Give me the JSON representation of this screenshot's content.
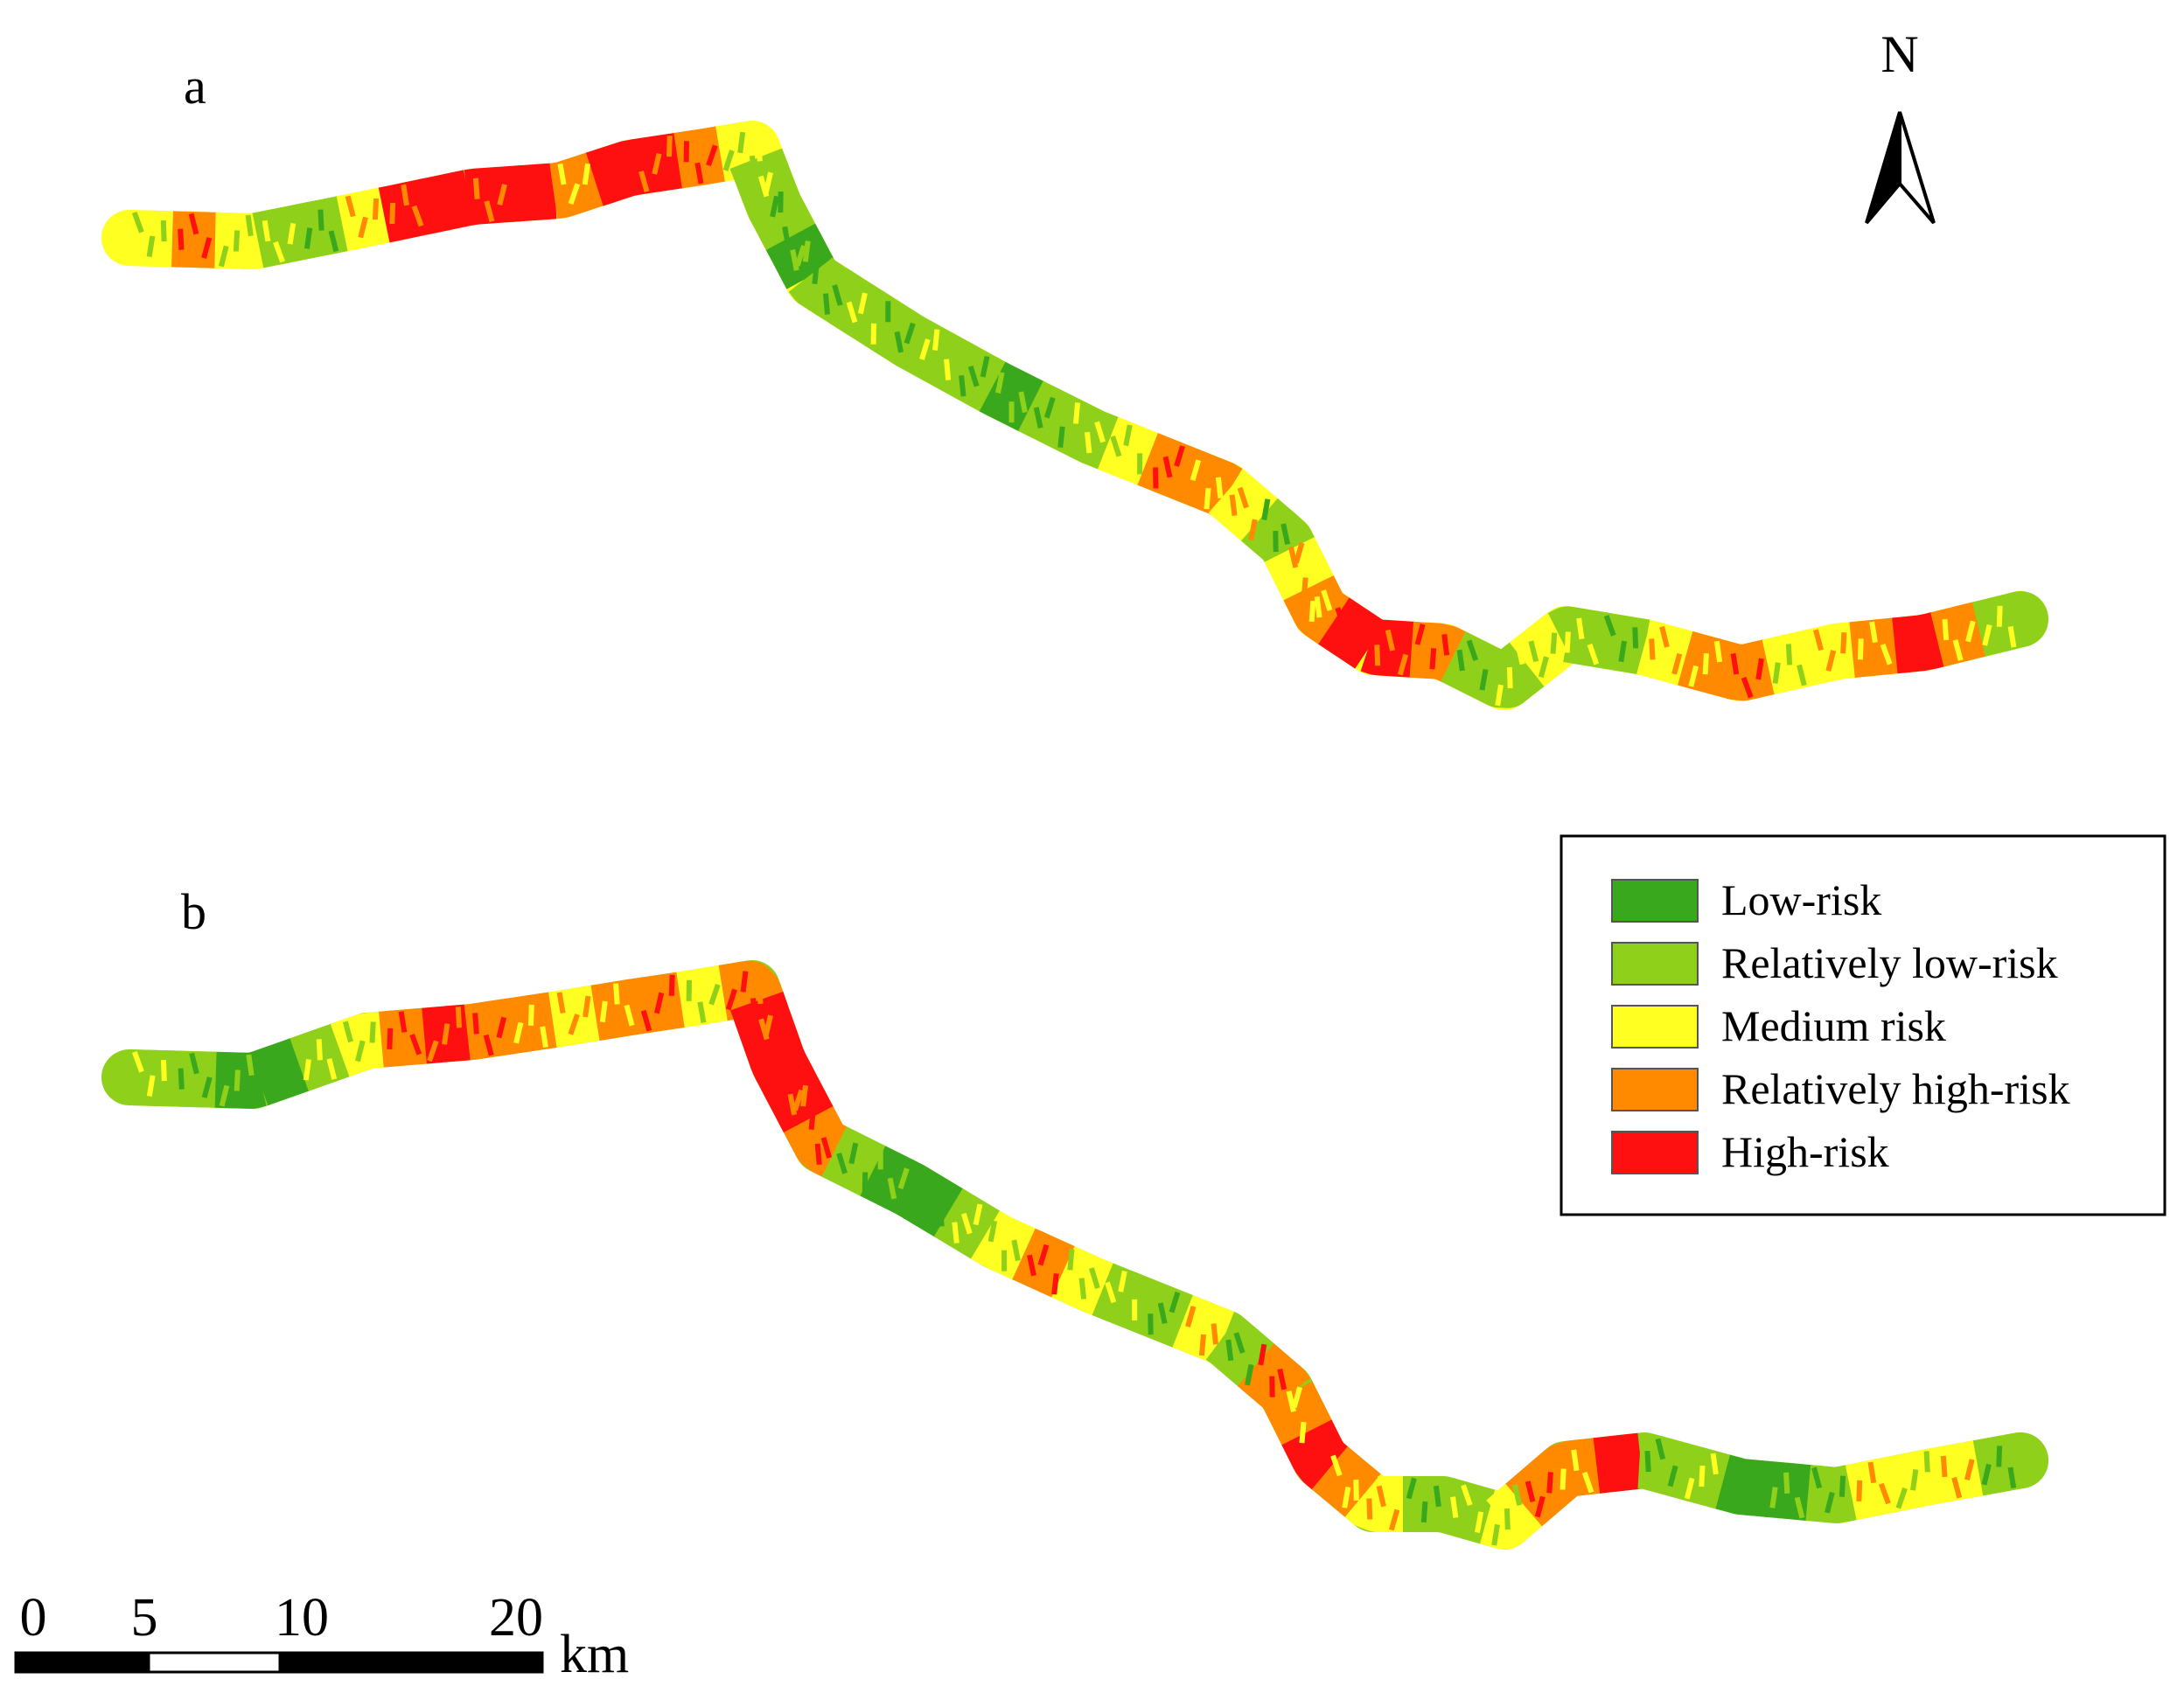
{
  "panels": [
    {
      "label": "a",
      "segments": [
        "medium",
        "relatively_high",
        "medium",
        "relatively_low",
        "relatively_low",
        "medium",
        "high",
        "high",
        "high",
        "high",
        "relatively_high",
        "high",
        "high",
        "relatively_high",
        "medium",
        "relatively_low",
        "relatively_low",
        "low",
        "relatively_low",
        "relatively_low",
        "relatively_low",
        "relatively_low",
        "relatively_low",
        "low",
        "relatively_low",
        "relatively_low",
        "medium",
        "relatively_high",
        "relatively_high",
        "medium",
        "relatively_low",
        "medium",
        "relatively_high",
        "high",
        "high",
        "relatively_high",
        "relatively_low",
        "relatively_low",
        "medium",
        "relatively_low",
        "relatively_low",
        "medium",
        "relatively_high",
        "relatively_high",
        "medium",
        "medium",
        "relatively_high",
        "high",
        "relatively_high",
        "relatively_low"
      ]
    },
    {
      "label": "b",
      "segments": [
        "relatively_low",
        "relatively_low",
        "low",
        "low",
        "relatively_low",
        "medium",
        "relatively_high",
        "high",
        "relatively_high",
        "relatively_high",
        "medium",
        "relatively_high",
        "relatively_high",
        "medium",
        "relatively_high",
        "high",
        "high",
        "high",
        "relatively_high",
        "relatively_low",
        "low",
        "low",
        "relatively_low",
        "medium",
        "relatively_high",
        "medium",
        "relatively_low",
        "relatively_low",
        "medium",
        "relatively_low",
        "relatively_high",
        "relatively_high",
        "high",
        "relatively_high",
        "medium",
        "relatively_low",
        "relatively_low",
        "medium",
        "relatively_high",
        "relatively_high",
        "high",
        "relatively_low",
        "relatively_low",
        "low",
        "low",
        "relatively_low",
        "medium",
        "medium",
        "medium",
        "relatively_low"
      ]
    }
  ],
  "north_arrow": {
    "label": "N"
  },
  "scale_bar": {
    "ticks": [
      "0",
      "5",
      "10",
      "20"
    ],
    "unit": "km"
  },
  "legend": {
    "items": [
      {
        "key": "low",
        "label": "Low-risk",
        "color": "#3aa81c"
      },
      {
        "key": "relatively_low",
        "label": "Relatively low-risk",
        "color": "#8fd11a"
      },
      {
        "key": "medium",
        "label": "Medium risk",
        "color": "#ffff22"
      },
      {
        "key": "relatively_high",
        "label": "Relatively high-risk",
        "color": "#ff8a00"
      },
      {
        "key": "high",
        "label": "High-risk",
        "color": "#ff1010"
      }
    ]
  }
}
